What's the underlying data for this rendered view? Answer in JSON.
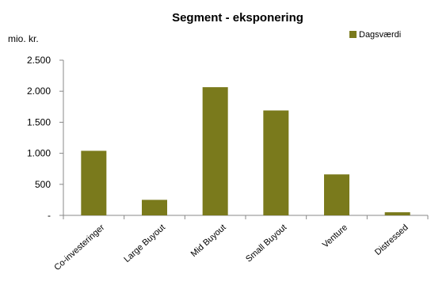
{
  "chart_data": {
    "type": "bar",
    "title": "Segment - eksponering",
    "ylabel": "mio. kr.",
    "xlabel": "",
    "categories": [
      "Co-investeringer",
      "Large Buyout",
      "Mid Buyout",
      "Small Buyout",
      "Venture",
      "Distressed"
    ],
    "series": [
      {
        "name": "Dagsværdi",
        "values": [
          1040,
          250,
          2065,
          1690,
          660,
          50
        ]
      }
    ],
    "ylim": [
      0,
      2500
    ],
    "yticks": [
      0,
      500,
      1000,
      1500,
      2000,
      2500
    ],
    "ytick_labels": [
      "-",
      "500",
      "1.000",
      "1.500",
      "2.000",
      "2.500"
    ],
    "legend_position": "top-right",
    "grid": false,
    "colors": {
      "bar": "#7a7a1c",
      "axis": "#888888"
    }
  }
}
